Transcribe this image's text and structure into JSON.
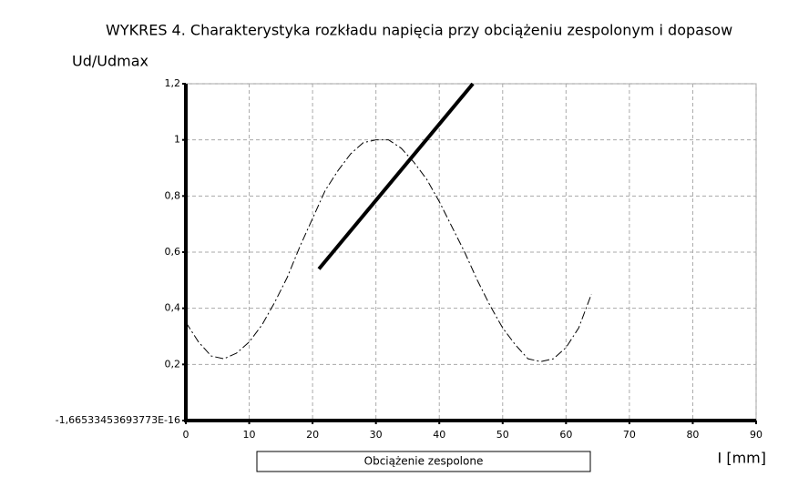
{
  "chart_data": {
    "type": "line",
    "title": "WYKRES 4. Charakterystyka rozkładu napięcia przy obciążeniu zespolonym i dopasow",
    "y_label": "Ud/Udmax",
    "x_label": "I [mm]",
    "xlim": [
      0,
      90
    ],
    "xticks": [
      0,
      10,
      20,
      30,
      40,
      50,
      60,
      70,
      80,
      90
    ],
    "ylim": [
      0,
      1.2
    ],
    "yticks": [
      {
        "value": 0,
        "label": "-1,66533453693773E-16"
      },
      {
        "value": 0.2,
        "label": "0,2"
      },
      {
        "value": 0.4,
        "label": "0,4"
      },
      {
        "value": 0.6,
        "label": "0,6"
      },
      {
        "value": 0.8,
        "label": "0,8"
      },
      1,
      {
        "value": 1.2,
        "label": "1,2"
      }
    ],
    "grid": true,
    "series": [
      {
        "name": "Obciążenie zespolone",
        "color": "#000000",
        "line_style": "dash-dot",
        "line_width": 1,
        "x": [
          0,
          2,
          4,
          6,
          8,
          10,
          12,
          14,
          16,
          18,
          20,
          22,
          24,
          26,
          28,
          30,
          32,
          34,
          36,
          38,
          40,
          42,
          44,
          46,
          48,
          50,
          52,
          54,
          56,
          58,
          60,
          62,
          64
        ],
        "values": [
          0.35,
          0.28,
          0.23,
          0.22,
          0.24,
          0.28,
          0.34,
          0.42,
          0.51,
          0.62,
          0.72,
          0.82,
          0.89,
          0.95,
          0.99,
          1.0,
          1.0,
          0.97,
          0.92,
          0.86,
          0.78,
          0.69,
          0.6,
          0.5,
          0.41,
          0.33,
          0.27,
          0.22,
          0.21,
          0.22,
          0.26,
          0.33,
          0.45
        ]
      },
      {
        "color": "#000000",
        "line_style": "solid",
        "line_width": 4,
        "x": [
          21,
          45.3
        ],
        "values": [
          0.54,
          1.2
        ]
      }
    ]
  }
}
